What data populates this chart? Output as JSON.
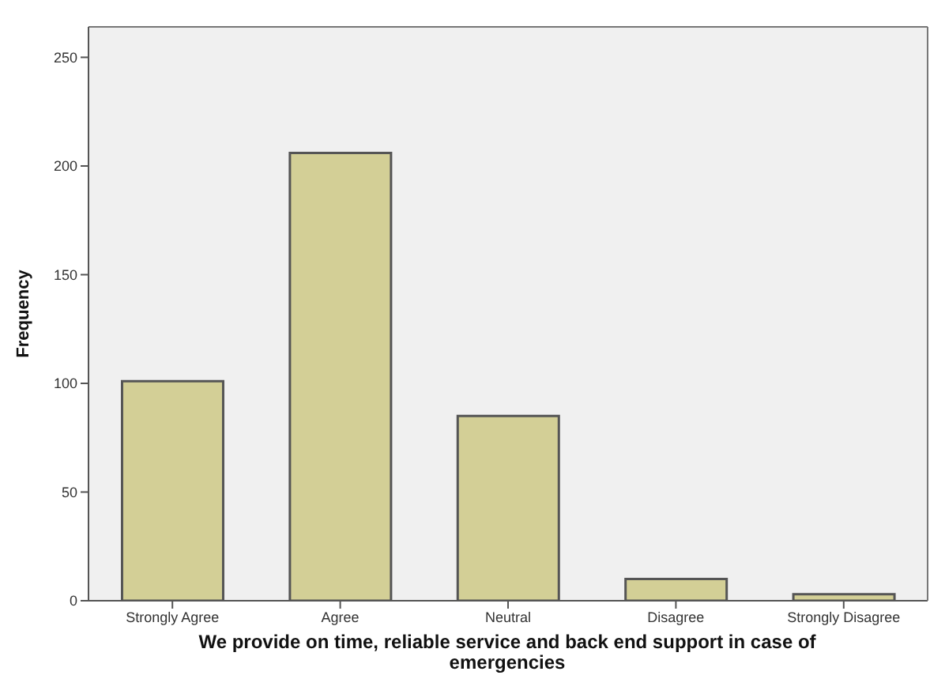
{
  "chart_data": {
    "type": "bar",
    "xlabel": "We provide on time, reliable service and back end support in case of emergencies",
    "ylabel": "Frequency",
    "categories": [
      "Strongly Agree",
      "Agree",
      "Neutral",
      "Disagree",
      "Strongly Disagree"
    ],
    "values": [
      101,
      206,
      85,
      10,
      3
    ],
    "color": "#d3cf96",
    "ylim": [
      0,
      264
    ],
    "yticks": [
      0,
      50,
      100,
      150,
      200,
      250
    ],
    "grid": false
  }
}
